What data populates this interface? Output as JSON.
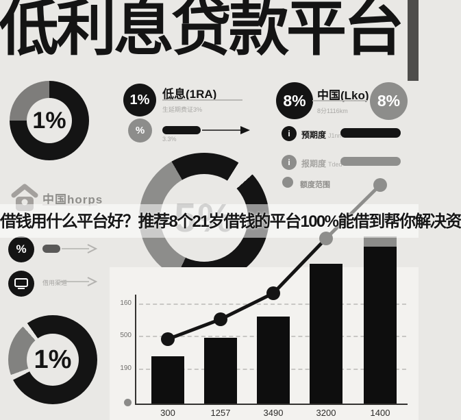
{
  "page_title": "低利息贷款平台",
  "banner_text": "借钱用什么平台好？推荐8个21岁借钱的平台100%能借到帮你解决资",
  "brand_label": "中国horps",
  "donuts": {
    "top_left_value": "1%",
    "center_value": "5%",
    "bottom_left_value": "1%"
  },
  "low_interest_section": {
    "badge_value": "1%",
    "title": "低息(1RA)",
    "subtitle": "生延期费证3%",
    "percent_badge": "%",
    "rate_note": "3.3%"
  },
  "china_section": {
    "badge_left_value": "8%",
    "badge_right_value": "8%",
    "title": "中国(Lko)",
    "subtitle": "8分1116km",
    "rows": [
      {
        "label": "预期度",
        "sub": "J1nm"
      },
      {
        "label": "报期度",
        "sub": "Tded"
      },
      {
        "label": "额度范围",
        "sub": ""
      }
    ]
  },
  "left_rows": {
    "percent_badge": "%",
    "channel_label": "借用渠道"
  },
  "chart_data": {
    "type": "bar+line",
    "categories": [
      "300",
      "1257",
      "3490",
      "3200",
      "1400"
    ],
    "series": [
      {
        "name": "bars",
        "type": "bar",
        "values": [
          70,
          97,
          128,
          205,
          245
        ]
      },
      {
        "name": "trend-line",
        "type": "line",
        "values": [
          95,
          124,
          162,
          242,
          320
        ]
      }
    ],
    "y_tick_labels": [
      "160",
      "500",
      "190"
    ],
    "ylim": [
      0,
      330
    ],
    "grid": "dashed-horizontal",
    "legend": "none",
    "colors": {
      "bar": "#0e0e0e",
      "line_dark": "#141414",
      "line_gray": "#8e8e8c",
      "last_bar_cap": "#8c8c8a"
    }
  }
}
